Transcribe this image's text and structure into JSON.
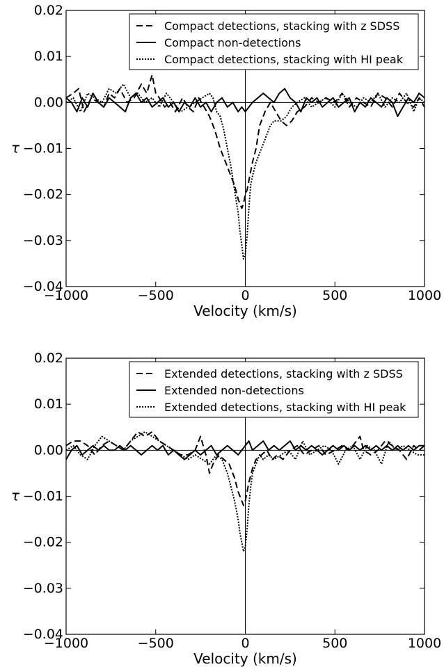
{
  "chart_data": [
    {
      "type": "line",
      "title": "",
      "xlabel": "Velocity (km/s)",
      "ylabel": "τ",
      "xlim": [
        -1000,
        1000
      ],
      "ylim": [
        -0.04,
        0.02
      ],
      "xticks": [
        "−1000",
        "−500",
        "0",
        "500",
        "1000"
      ],
      "yticks": [
        "0.02",
        "0.01",
        "0.00",
        "−0.01",
        "−0.02",
        "−0.03",
        "−0.04"
      ],
      "legend_position": "top-right",
      "grid": false,
      "reference_lines": {
        "y": 0,
        "x": 0
      },
      "series": [
        {
          "name": "Compact detections, stacking with z SDSS",
          "style": "dashed",
          "x": [
            -1000,
            -960,
            -930,
            -900,
            -860,
            -820,
            -790,
            -760,
            -730,
            -700,
            -660,
            -620,
            -580,
            -550,
            -520,
            -500,
            -480,
            -450,
            -420,
            -390,
            -350,
            -320,
            -290,
            -260,
            -230,
            -200,
            -170,
            -140,
            -110,
            -80,
            -60,
            -40,
            -20,
            -10,
            0,
            10,
            20,
            40,
            60,
            80,
            110,
            140,
            170,
            200,
            230,
            260,
            290,
            330,
            370,
            410,
            450,
            500,
            540,
            580,
            620,
            660,
            700,
            740,
            780,
            820,
            860,
            900,
            940,
            970,
            1000
          ],
          "y": [
            0.001,
            0.002,
            0.003,
            -0.002,
            0.001,
            0.0,
            -0.001,
            0.002,
            0.001,
            0.003,
            0.0,
            0.001,
            0.004,
            0.002,
            0.006,
            0.002,
            0.001,
            -0.001,
            0.0,
            -0.002,
            0.001,
            -0.001,
            -0.002,
            0.001,
            -0.001,
            -0.003,
            -0.006,
            -0.01,
            -0.013,
            -0.016,
            -0.018,
            -0.021,
            -0.023,
            -0.022,
            -0.02,
            -0.019,
            -0.017,
            -0.013,
            -0.01,
            -0.005,
            -0.002,
            0.0,
            -0.002,
            -0.004,
            -0.005,
            -0.004,
            -0.002,
            -0.001,
            0.001,
            0.0,
            0.001,
            0.0,
            0.002,
            -0.001,
            0.001,
            0.0,
            -0.001,
            0.002,
            0.001,
            -0.001,
            0.002,
            0.0,
            -0.001,
            0.001,
            -0.001
          ]
        },
        {
          "name": "Compact non-detections",
          "style": "solid",
          "x": [
            -1000,
            -970,
            -940,
            -910,
            -880,
            -850,
            -820,
            -790,
            -760,
            -730,
            -700,
            -670,
            -640,
            -610,
            -580,
            -550,
            -520,
            -490,
            -460,
            -430,
            -400,
            -370,
            -340,
            -310,
            -280,
            -250,
            -220,
            -190,
            -160,
            -130,
            -100,
            -70,
            -40,
            -20,
            0,
            20,
            40,
            70,
            100,
            130,
            160,
            190,
            220,
            250,
            280,
            310,
            340,
            370,
            400,
            430,
            460,
            490,
            520,
            550,
            580,
            610,
            640,
            670,
            700,
            730,
            760,
            790,
            820,
            850,
            880,
            910,
            940,
            970,
            1000
          ],
          "y": [
            0.001,
            0.0,
            -0.002,
            0.001,
            -0.001,
            0.002,
            0.0,
            -0.001,
            0.001,
            0.0,
            -0.001,
            -0.002,
            0.001,
            0.002,
            0.0,
            0.001,
            -0.001,
            0.0,
            0.001,
            -0.001,
            0.0,
            -0.002,
            0.0,
            -0.001,
            0.001,
            -0.001,
            0.0,
            -0.002,
            0.0,
            0.001,
            -0.001,
            0.0,
            -0.002,
            -0.001,
            -0.002,
            -0.001,
            0.0,
            0.001,
            0.002,
            0.001,
            0.0,
            0.002,
            0.003,
            0.001,
            0.0,
            -0.002,
            0.001,
            0.0,
            0.001,
            -0.001,
            0.0,
            0.001,
            -0.001,
            0.0,
            0.001,
            -0.002,
            0.0,
            -0.001,
            0.001,
            0.0,
            -0.001,
            0.001,
            0.0,
            -0.003,
            -0.001,
            0.001,
            0.0,
            0.002,
            0.001
          ]
        },
        {
          "name": "Compact detections, stacking with HI peak",
          "style": "dotted",
          "x": [
            -1000,
            -960,
            -920,
            -880,
            -840,
            -800,
            -760,
            -720,
            -680,
            -640,
            -600,
            -560,
            -520,
            -480,
            -440,
            -400,
            -360,
            -320,
            -280,
            -240,
            -200,
            -180,
            -160,
            -140,
            -120,
            -100,
            -80,
            -60,
            -40,
            -30,
            -20,
            -10,
            0,
            10,
            20,
            30,
            40,
            60,
            80,
            100,
            120,
            140,
            160,
            180,
            200,
            230,
            260,
            290,
            330,
            370,
            410,
            450,
            500,
            540,
            580,
            620,
            660,
            700,
            740,
            780,
            820,
            860,
            900,
            940,
            970,
            1000
          ],
          "y": [
            0.0,
            0.001,
            -0.002,
            0.002,
            0.001,
            0.0,
            0.003,
            0.002,
            0.004,
            0.001,
            0.002,
            0.0,
            0.001,
            -0.001,
            0.002,
            0.0,
            -0.002,
            -0.001,
            0.0,
            0.001,
            0.002,
            0.001,
            -0.002,
            -0.003,
            -0.006,
            -0.01,
            -0.014,
            -0.019,
            -0.024,
            -0.028,
            -0.031,
            -0.034,
            -0.033,
            -0.029,
            -0.023,
            -0.018,
            -0.016,
            -0.013,
            -0.011,
            -0.009,
            -0.007,
            -0.005,
            -0.004,
            -0.004,
            -0.004,
            -0.003,
            -0.001,
            0.0,
            0.001,
            -0.001,
            0.0,
            0.001,
            -0.001,
            0.002,
            0.0,
            -0.001,
            0.001,
            0.0,
            0.002,
            -0.001,
            0.001,
            0.0,
            0.002,
            -0.002,
            0.001,
            0.0
          ]
        }
      ]
    },
    {
      "type": "line",
      "title": "",
      "xlabel": "Velocity (km/s)",
      "ylabel": "τ",
      "xlim": [
        -1000,
        1000
      ],
      "ylim": [
        -0.04,
        0.02
      ],
      "xticks": [
        "−1000",
        "−500",
        "0",
        "500",
        "1000"
      ],
      "yticks": [
        "0.02",
        "0.01",
        "0.00",
        "−0.01",
        "−0.02",
        "−0.03",
        "−0.04"
      ],
      "legend_position": "top-right",
      "grid": false,
      "reference_lines": {
        "y": 0,
        "x": 0
      },
      "series": [
        {
          "name": "Extended detections, stacking with z SDSS",
          "style": "dashed",
          "x": [
            -1000,
            -960,
            -920,
            -880,
            -840,
            -800,
            -760,
            -720,
            -680,
            -640,
            -600,
            -560,
            -520,
            -480,
            -440,
            -400,
            -360,
            -320,
            -280,
            -250,
            -220,
            -200,
            -180,
            -150,
            -120,
            -90,
            -60,
            -40,
            -20,
            -10,
            0,
            10,
            20,
            40,
            60,
            90,
            120,
            150,
            180,
            210,
            250,
            290,
            330,
            370,
            410,
            450,
            500,
            540,
            580,
            620,
            640,
            660,
            700,
            740,
            780,
            820,
            860,
            900,
            940,
            970,
            1000
          ],
          "y": [
            0.001,
            0.002,
            0.002,
            0.001,
            -0.001,
            0.001,
            0.002,
            0.001,
            0.0,
            0.002,
            0.004,
            0.003,
            0.004,
            0.002,
            0.001,
            0.0,
            -0.001,
            -0.001,
            0.0,
            0.003,
            -0.001,
            -0.005,
            -0.003,
            -0.001,
            -0.002,
            -0.003,
            -0.006,
            -0.009,
            -0.011,
            -0.012,
            -0.011,
            -0.009,
            -0.007,
            -0.004,
            -0.002,
            -0.001,
            0.0,
            -0.002,
            -0.001,
            -0.002,
            0.0,
            0.001,
            -0.001,
            0.0,
            0.001,
            -0.001,
            0.0,
            0.001,
            0.0,
            0.002,
            0.003,
            0.0,
            -0.001,
            0.0,
            0.002,
            0.001,
            0.0,
            -0.002,
            0.001,
            0.0,
            0.001
          ]
        },
        {
          "name": "Extended non-detections",
          "style": "solid",
          "x": [
            -1000,
            -970,
            -940,
            -910,
            -880,
            -850,
            -820,
            -790,
            -760,
            -730,
            -700,
            -670,
            -640,
            -610,
            -580,
            -550,
            -520,
            -490,
            -460,
            -430,
            -400,
            -370,
            -340,
            -310,
            -280,
            -250,
            -220,
            -190,
            -160,
            -130,
            -100,
            -70,
            -40,
            -20,
            0,
            20,
            40,
            70,
            100,
            130,
            160,
            190,
            220,
            250,
            280,
            310,
            340,
            370,
            400,
            430,
            460,
            490,
            520,
            550,
            580,
            610,
            640,
            670,
            700,
            730,
            760,
            790,
            820,
            850,
            880,
            910,
            940,
            970,
            1000
          ],
          "y": [
            -0.002,
            0.0,
            0.001,
            -0.001,
            0.0,
            0.001,
            0.0,
            0.001,
            0.0,
            0.0,
            0.001,
            0.0,
            0.001,
            0.0,
            -0.001,
            0.0,
            0.001,
            0.0,
            0.001,
            -0.001,
            0.0,
            -0.001,
            -0.002,
            -0.001,
            0.0,
            -0.001,
            0.0,
            0.001,
            -0.001,
            0.0,
            0.001,
            0.0,
            -0.001,
            0.0,
            0.001,
            0.002,
            0.0,
            0.001,
            0.002,
            0.0,
            0.001,
            0.0,
            0.001,
            0.002,
            0.0,
            0.001,
            0.0,
            0.001,
            0.0,
            -0.001,
            0.0,
            0.001,
            0.0,
            0.001,
            0.0,
            0.001,
            0.0,
            0.001,
            0.0,
            0.001,
            0.0,
            0.001,
            0.0,
            0.001,
            0.0,
            0.001,
            0.0,
            0.001,
            0.001
          ]
        },
        {
          "name": "Extended detections, stacking with HI peak",
          "style": "dotted",
          "x": [
            -1000,
            -960,
            -920,
            -880,
            -840,
            -800,
            -760,
            -720,
            -680,
            -640,
            -600,
            -560,
            -520,
            -480,
            -440,
            -400,
            -360,
            -320,
            -280,
            -240,
            -200,
            -160,
            -130,
            -100,
            -80,
            -60,
            -40,
            -30,
            -20,
            -10,
            0,
            10,
            20,
            30,
            40,
            60,
            80,
            100,
            130,
            160,
            200,
            240,
            280,
            320,
            360,
            400,
            440,
            480,
            520,
            560,
            600,
            640,
            680,
            720,
            760,
            800,
            840,
            880,
            920,
            960,
            1000
          ],
          "y": [
            0.0,
            0.001,
            -0.001,
            -0.002,
            0.001,
            0.003,
            0.002,
            0.001,
            0.0,
            0.002,
            0.003,
            0.004,
            0.003,
            0.002,
            0.001,
            0.0,
            -0.001,
            -0.002,
            -0.001,
            -0.002,
            -0.003,
            -0.001,
            -0.002,
            -0.005,
            -0.008,
            -0.011,
            -0.015,
            -0.018,
            -0.02,
            -0.022,
            -0.021,
            -0.017,
            -0.012,
            -0.008,
            -0.005,
            -0.003,
            -0.001,
            -0.002,
            -0.001,
            -0.002,
            -0.001,
            0.0,
            -0.002,
            0.002,
            -0.001,
            0.0,
            0.001,
            0.0,
            -0.003,
            0.0,
            0.001,
            -0.002,
            0.001,
            0.0,
            -0.003,
            0.002,
            0.0,
            0.001,
            0.0,
            -0.001,
            -0.001
          ]
        }
      ]
    }
  ]
}
